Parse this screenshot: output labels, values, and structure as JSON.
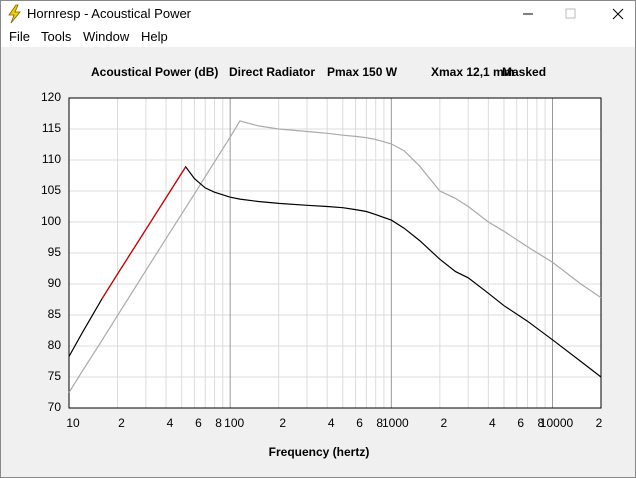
{
  "window": {
    "title": "Hornresp - Acoustical Power",
    "menu": [
      "File",
      "Tools",
      "Window",
      "Help"
    ]
  },
  "chart_data": {
    "type": "line",
    "title": [
      "Acoustical Power (dB)",
      "Direct Radiator",
      "Pmax 150 W",
      "Xmax 12,1 mm",
      "Masked"
    ],
    "x_label": "Frequency (hertz)",
    "x_log": true,
    "grid": true,
    "xlim": [
      10,
      20000
    ],
    "ylim": [
      70,
      120
    ],
    "xticks": [
      10,
      {
        "value": 20,
        "label": "2"
      },
      {
        "value": 40,
        "label": "4"
      },
      {
        "value": 60,
        "label": "6"
      },
      {
        "value": 80,
        "label": "8"
      },
      100,
      {
        "value": 200,
        "label": "2"
      },
      {
        "value": 400,
        "label": "4"
      },
      {
        "value": 600,
        "label": "6"
      },
      {
        "value": 800,
        "label": "8"
      },
      1000,
      {
        "value": 2000,
        "label": "2"
      },
      {
        "value": 4000,
        "label": "4"
      },
      {
        "value": 6000,
        "label": "6"
      },
      {
        "value": 8000,
        "label": "8"
      },
      10000,
      {
        "value": 20000,
        "label": "2"
      }
    ],
    "xgrid_minor": [
      30,
      50,
      70,
      90,
      300,
      500,
      700,
      900,
      3000,
      5000,
      7000,
      9000
    ],
    "yticks": [
      70,
      75,
      80,
      85,
      90,
      95,
      100,
      105,
      110,
      115,
      120
    ],
    "x": [
      10,
      12,
      16,
      20,
      30,
      40,
      53,
      60,
      70,
      80,
      100,
      115,
      150,
      200,
      300,
      400,
      500,
      600,
      700,
      800,
      1000,
      1200,
      1500,
      2000,
      2500,
      3000,
      4000,
      5000,
      7000,
      10000,
      15000,
      20000
    ],
    "series": [
      {
        "color": "#aaaaaa",
        "values": [
          72.5,
          75.8,
          80.9,
          84.9,
          92.2,
          97.3,
          102.3,
          104.5,
          107.3,
          109.7,
          113.7,
          116.3,
          115.5,
          115,
          114.6,
          114.3,
          114,
          113.8,
          113.6,
          113.3,
          112.6,
          111.5,
          109,
          105,
          103.8,
          102.5,
          100,
          98.5,
          96,
          93.5,
          90,
          87.8
        ]
      },
      {
        "color": "#000000",
        "values": [
          78.3,
          82,
          87.6,
          91.6,
          98.8,
          103.9,
          108.9,
          107,
          105.5,
          104.8,
          104,
          103.7,
          103.3,
          103,
          102.7,
          102.5,
          102.3,
          102,
          101.7,
          101.2,
          100.3,
          99,
          97,
          94,
          92,
          91,
          88.5,
          86.5,
          84,
          81,
          77.5,
          75
        ]
      },
      {
        "color": "#dd0000",
        "values": [
          null,
          null,
          87.6,
          91.6,
          98.8,
          103.9,
          108.9,
          null,
          null,
          null,
          null,
          null,
          null,
          null,
          null,
          null,
          null,
          null,
          null,
          null,
          null,
          null,
          null,
          null,
          null,
          null,
          null,
          null,
          null,
          null,
          null,
          null
        ]
      }
    ]
  }
}
